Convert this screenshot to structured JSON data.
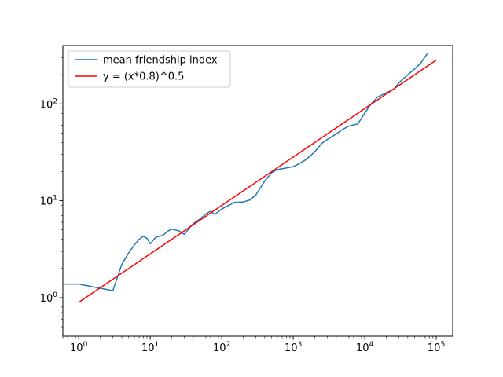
{
  "chart_data": {
    "type": "line",
    "title": "",
    "xlabel": "",
    "ylabel": "",
    "xscale": "log",
    "yscale": "log",
    "xlim": [
      0.6,
      170000
    ],
    "ylim": [
      0.4,
      400
    ],
    "grid": false,
    "legend_position": "upper-left",
    "x_ticks": [
      {
        "value": 1,
        "base": "10",
        "exp": "0"
      },
      {
        "value": 10,
        "base": "10",
        "exp": "1"
      },
      {
        "value": 100,
        "base": "10",
        "exp": "2"
      },
      {
        "value": 1000,
        "base": "10",
        "exp": "3"
      },
      {
        "value": 10000,
        "base": "10",
        "exp": "4"
      },
      {
        "value": 100000,
        "base": "10",
        "exp": "5"
      }
    ],
    "y_ticks": [
      {
        "value": 1,
        "base": "10",
        "exp": "0"
      },
      {
        "value": 10,
        "base": "10",
        "exp": "1"
      },
      {
        "value": 100,
        "base": "10",
        "exp": "2"
      }
    ],
    "series": [
      {
        "name": "mean friendship index",
        "color": "#1f77b4",
        "x": [
          0.6,
          1,
          2,
          3,
          4,
          5,
          6,
          7,
          8,
          9,
          10,
          12,
          15,
          18,
          20,
          25,
          30,
          35,
          40,
          50,
          60,
          70,
          80,
          100,
          120,
          150,
          200,
          250,
          300,
          400,
          500,
          600,
          800,
          1000,
          1200,
          1500,
          2000,
          2500,
          3000,
          4000,
          5000,
          6000,
          8000,
          10000,
          12000,
          15000,
          20000,
          25000,
          30000,
          40000,
          50000,
          60000,
          75000
        ],
        "y": [
          1.38,
          1.38,
          1.25,
          1.18,
          2.2,
          2.9,
          3.5,
          4.0,
          4.3,
          4.1,
          3.6,
          4.2,
          4.4,
          4.9,
          5.1,
          4.9,
          4.5,
          5.2,
          5.8,
          6.5,
          7.3,
          7.8,
          7.2,
          8.2,
          8.8,
          9.6,
          9.7,
          10.2,
          11.5,
          16.0,
          19.5,
          21.0,
          21.8,
          22.5,
          24.0,
          26.5,
          32.0,
          39.0,
          43.0,
          49.0,
          55.0,
          59.0,
          62.0,
          80.0,
          98.0,
          117.0,
          130.0,
          140.0,
          165.0,
          200.0,
          230.0,
          260.0,
          330.0
        ]
      },
      {
        "name": "y = (x*0.8)^0.5",
        "color": "#ff0000",
        "x": [
          1,
          100000
        ],
        "y": [
          0.894,
          282.8
        ]
      }
    ]
  }
}
